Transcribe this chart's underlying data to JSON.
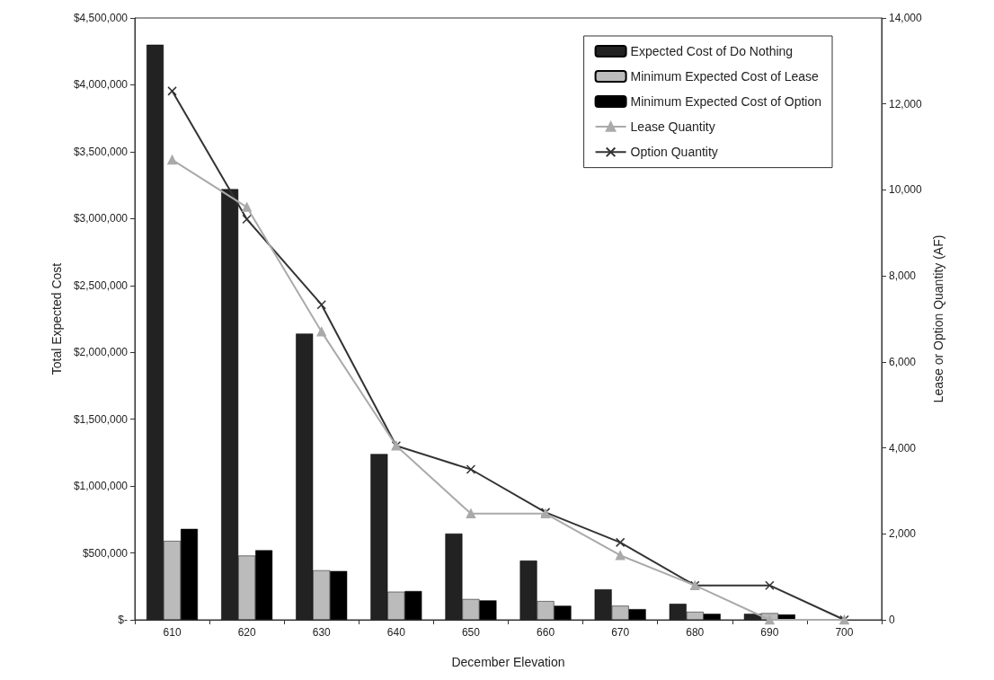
{
  "chart_data": {
    "type": "bar",
    "xlabel": "December Elevation",
    "ylabel": "Total Expected Cost",
    "y2label": "Lease or Option Quantity (AF)",
    "categories": [
      "610",
      "620",
      "630",
      "640",
      "650",
      "660",
      "670",
      "680",
      "690",
      "700"
    ],
    "series": [
      {
        "name": "Expected Cost of Do Nothing",
        "color": "#222222",
        "values": [
          4300000,
          3220000,
          2140000,
          1240000,
          645000,
          443000,
          228000,
          120000,
          45000,
          null
        ]
      },
      {
        "name": "Minimum Expected Cost of Lease",
        "color": "#bbbbbb",
        "values": [
          590000,
          480000,
          370000,
          210000,
          155000,
          140000,
          105000,
          60000,
          50000,
          null
        ]
      },
      {
        "name": "Minimum Expected Cost of Option",
        "color": "#000000",
        "values": [
          680000,
          520000,
          365000,
          215000,
          145000,
          105000,
          80000,
          45000,
          40000,
          null
        ]
      },
      {
        "name": "Lease Quantity",
        "type": "line",
        "axis": "y2",
        "color": "#aaaaaa",
        "marker": "triangle",
        "values": [
          10700,
          9600,
          6700,
          4050,
          2470,
          2470,
          1500,
          800,
          0,
          0
        ]
      },
      {
        "name": "Option Quantity",
        "type": "line",
        "axis": "y2",
        "color": "#333333",
        "marker": "cross",
        "values": [
          12300,
          9320,
          7330,
          4050,
          3500,
          2500,
          1800,
          800,
          800,
          0
        ]
      }
    ],
    "ylim": [
      0,
      4500000
    ],
    "yticks": [
      {
        "value": 0,
        "label": "$-"
      },
      {
        "value": 500000,
        "label": "$500,000"
      },
      {
        "value": 1000000,
        "label": "$1,000,000"
      },
      {
        "value": 1500000,
        "label": "$1,500,000"
      },
      {
        "value": 2000000,
        "label": "$2,000,000"
      },
      {
        "value": 2500000,
        "label": "$2,500,000"
      },
      {
        "value": 3000000,
        "label": "$3,000,000"
      },
      {
        "value": 3500000,
        "label": "$3,500,000"
      },
      {
        "value": 4000000,
        "label": "$4,000,000"
      },
      {
        "value": 4500000,
        "label": "$4,500,000"
      }
    ],
    "y2lim": [
      0,
      14000
    ],
    "y2ticks": [
      0,
      {
        "value": 2000,
        "label": "2,000"
      },
      {
        "value": 4000,
        "label": "4,000"
      },
      {
        "value": 6000,
        "label": "6,000"
      },
      {
        "value": 8000,
        "label": "8,000"
      },
      {
        "value": 10000,
        "label": "10,000"
      },
      {
        "value": 12000,
        "label": "12,000"
      },
      {
        "value": 14000,
        "label": "14,000"
      }
    ],
    "grid": false,
    "legend": "top right",
    "line_style": "solid"
  }
}
